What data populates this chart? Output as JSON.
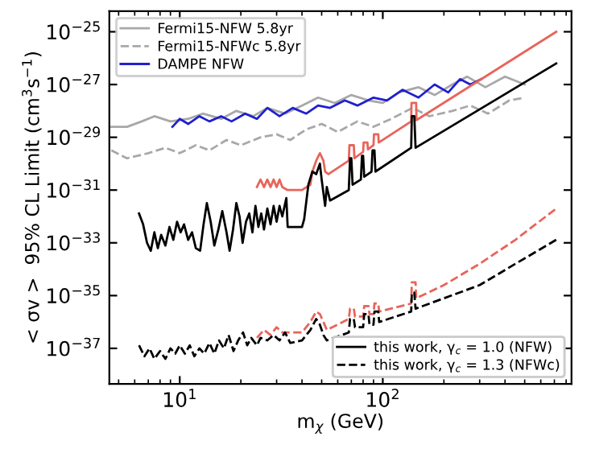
{
  "chart_data": {
    "type": "line",
    "xlabel": "m$_{χ}$ (GeV)",
    "ylabel": "< σv >  95% CL Limit (cm$^{3}$s$^{−1}$)",
    "log": "xy",
    "xlim": [
      4.5,
      850
    ],
    "ylim": [
      4.5e-39,
      6e-25
    ],
    "xticks": [
      {
        "value": 10,
        "label": "10$^{1}$"
      },
      {
        "value": 100,
        "label": "10$^{2}$"
      }
    ],
    "yticks": [
      {
        "value": 1e-37,
        "label": "10$^{−37}$"
      },
      {
        "value": 1e-35,
        "label": "10$^{−35}$"
      },
      {
        "value": 1e-33,
        "label": "10$^{−33}$"
      },
      {
        "value": 1e-31,
        "label": "10$^{−31}$"
      },
      {
        "value": 1e-29,
        "label": "10$^{−29}$"
      },
      {
        "value": 1e-27,
        "label": "10$^{−27}$"
      },
      {
        "value": 1e-25,
        "label": "10$^{−25}$"
      }
    ],
    "grid": false,
    "legend": [
      "top left",
      "bottom right"
    ],
    "marker": "none",
    "series": [
      {
        "name": "Fermi15-NFW 5.8yr",
        "color": "#a8a8a8",
        "line_style": "solid",
        "x": [
          4.6,
          5.5,
          6.5,
          7.5,
          9,
          11,
          13,
          16,
          19,
          23,
          27,
          33,
          40,
          48,
          58,
          70,
          85,
          100,
          120,
          150,
          180,
          220,
          260,
          320,
          400,
          500
        ],
        "values": [
          2.5e-29,
          2.5e-29,
          4e-29,
          6.3e-29,
          4e-29,
          5e-29,
          7.9e-29,
          5e-29,
          1e-28,
          6.3e-29,
          1.3e-28,
          7.9e-29,
          1.6e-28,
          3.2e-28,
          2e-28,
          4e-28,
          2.5e-28,
          2e-28,
          5e-28,
          7.9e-28,
          4e-28,
          1e-27,
          2e-27,
          7.9e-28,
          2e-27,
          1e-27
        ]
      },
      {
        "name": "Fermi15-NFWc 5.8yr",
        "color": "#a8a8a8",
        "line_style": "dashed",
        "x": [
          4.6,
          5.5,
          7,
          8.5,
          10,
          12,
          14,
          17,
          20,
          25,
          30,
          35,
          42,
          50,
          60,
          75,
          90,
          110,
          140,
          170,
          220,
          270,
          330,
          420,
          500
        ],
        "values": [
          3.2e-30,
          1.6e-30,
          2.5e-30,
          4e-30,
          2.5e-30,
          5e-30,
          3.2e-30,
          7.9e-30,
          5e-30,
          1e-29,
          1.3e-29,
          7.9e-30,
          2e-29,
          3.2e-29,
          1.6e-29,
          4e-29,
          2.5e-29,
          5e-29,
          1.3e-28,
          6.3e-29,
          1e-28,
          1.6e-28,
          7.9e-29,
          2.5e-28,
          3.2e-28
        ]
      },
      {
        "name": "DAMPE NFW",
        "color": "#2020d0",
        "line_style": "solid",
        "x": [
          9.2,
          10,
          11,
          12.5,
          14,
          16,
          18,
          21,
          24,
          27,
          31,
          36,
          42,
          48,
          55,
          65,
          75,
          90,
          105,
          125,
          150,
          180,
          210,
          240,
          270,
          305
        ],
        "values": [
          2.5e-29,
          5e-29,
          3.2e-29,
          6.3e-29,
          4e-29,
          6.3e-29,
          4e-29,
          7.9e-29,
          5e-29,
          1.3e-28,
          6.3e-29,
          1.3e-28,
          7.9e-29,
          1.6e-28,
          1.3e-28,
          2.5e-28,
          1.6e-28,
          3.2e-28,
          2.5e-28,
          6.3e-28,
          3.2e-28,
          1e-27,
          5e-28,
          1.6e-27,
          1e-27,
          1.6e-27
        ]
      },
      {
        "color": "#e8645a",
        "line_style": "solid",
        "x": [
          24,
          25,
          26,
          27,
          28,
          29,
          30,
          31,
          32,
          34,
          40,
          44,
          45,
          47,
          49,
          51,
          52,
          54,
          68,
          68.5,
          72,
          72.5,
          80,
          80.5,
          84,
          84.5,
          90,
          90.5,
          95,
          95.5,
          138,
          138.5,
          146,
          146.5,
          715
        ],
        "values": [
          1.3e-31,
          2.5e-31,
          1.3e-31,
          2.5e-31,
          1.3e-31,
          2.5e-31,
          1.3e-31,
          2.5e-31,
          1.3e-31,
          1e-31,
          1e-31,
          1.6e-31,
          5e-31,
          1.3e-30,
          2.5e-30,
          1.3e-30,
          5e-31,
          4e-31,
          1.3e-30,
          5e-30,
          5e-30,
          1.6e-30,
          2.8e-30,
          6.3e-30,
          6.3e-30,
          3.5e-30,
          5e-30,
          1.3e-29,
          1.3e-29,
          6.3e-30,
          4e-29,
          2e-28,
          2e-28,
          4.5e-29,
          1e-25
        ]
      },
      {
        "name": "this work, γ$_{c}$ = 1.0 (NFW)",
        "color": "#000000",
        "line_style": "solid",
        "x": [
          6.3,
          6.6,
          6.9,
          7.2,
          7.5,
          7.8,
          8.1,
          8.5,
          8.9,
          9.3,
          9.7,
          10.1,
          10.5,
          11,
          11.5,
          12,
          12.6,
          13.1,
          13.6,
          14.2,
          14.8,
          15.5,
          16.2,
          17,
          17.6,
          18.3,
          19,
          19.7,
          20.4,
          21.2,
          22,
          22.8,
          23.6,
          24.4,
          25.2,
          26,
          27,
          28,
          29,
          30,
          31,
          32,
          33.5,
          34,
          40,
          41,
          43,
          45,
          47,
          49,
          50,
          52,
          53,
          55,
          68,
          69,
          70,
          71,
          78,
          79,
          80,
          81,
          88,
          89,
          91,
          92,
          138,
          139,
          143,
          145,
          715
        ],
        "values": [
          1.3e-32,
          5e-33,
          1e-33,
          5e-34,
          2.5e-33,
          6.3e-34,
          2e-33,
          7.9e-34,
          4e-33,
          1.3e-33,
          6.3e-33,
          2.5e-33,
          5e-33,
          1.3e-33,
          2.5e-33,
          6.3e-34,
          5e-34,
          5e-33,
          3.2e-32,
          6.3e-33,
          7.9e-34,
          3.2e-33,
          1.6e-32,
          2.5e-33,
          5e-34,
          3.2e-33,
          3.2e-32,
          1e-32,
          1e-33,
          6.3e-33,
          1.3e-32,
          2.5e-33,
          2.5e-32,
          4e-33,
          1.3e-32,
          3.2e-33,
          2e-32,
          5e-33,
          2.5e-32,
          6.3e-33,
          2.5e-32,
          1e-32,
          5e-32,
          4e-33,
          4e-33,
          7.9e-33,
          1.6e-31,
          5e-31,
          4e-31,
          1e-30,
          2.5e-31,
          2.5e-32,
          1.3e-31,
          4e-32,
          1e-31,
          1.6e-30,
          1.6e-30,
          1.6e-31,
          2.5e-31,
          2e-30,
          2e-30,
          3.2e-31,
          5e-31,
          3.2e-30,
          3.2e-30,
          5e-31,
          4e-30,
          6.3e-29,
          6.3e-29,
          4e-30,
          6.3e-27
        ]
      },
      {
        "color": "#e8645a",
        "line_style": "dashed",
        "x": [
          24,
          26,
          28,
          30,
          32,
          34,
          40,
          44,
          47,
          49,
          51,
          53,
          68,
          69,
          72,
          73,
          80,
          81,
          85,
          86,
          90,
          91,
          95,
          96,
          138,
          139,
          145,
          146,
          200,
          300,
          450,
          715
        ],
        "values": [
          2.5e-37,
          5e-37,
          3.2e-37,
          6.3e-37,
          4e-37,
          4e-37,
          4e-37,
          1e-36,
          2.5e-36,
          2e-36,
          1e-36,
          5e-37,
          1.3e-36,
          3.2e-36,
          3.2e-36,
          1.6e-36,
          1.6e-36,
          4e-36,
          4e-36,
          2e-36,
          2e-36,
          5e-36,
          5e-36,
          2.5e-36,
          5e-36,
          3.2e-35,
          3.2e-35,
          7.9e-36,
          2.5e-35,
          1.6e-34,
          1.3e-33,
          2e-32
        ]
      },
      {
        "name": "this work, γ$_{c}$ = 1.3 (NFWc)",
        "color": "#000000",
        "line_style": "dashed",
        "x": [
          6.3,
          6.7,
          7.1,
          7.5,
          8,
          8.5,
          9,
          9.5,
          10,
          10.6,
          11.2,
          11.8,
          12.5,
          13.2,
          14,
          14.8,
          15.6,
          16.5,
          17.4,
          18.4,
          19.4,
          20.5,
          21.5,
          22.5,
          24,
          25,
          27,
          29,
          31,
          33,
          35,
          40,
          44,
          47,
          49,
          51,
          53,
          68,
          69,
          72,
          73,
          80,
          81,
          85,
          86,
          90,
          91,
          95,
          96,
          138,
          139,
          143,
          145,
          200,
          300,
          450,
          715
        ],
        "values": [
          1.3e-37,
          5e-38,
          1e-37,
          4e-38,
          7.9e-38,
          4e-38,
          1e-37,
          6.3e-38,
          1.3e-37,
          6.3e-38,
          1.3e-37,
          5e-38,
          1e-37,
          6.3e-38,
          1.6e-37,
          6.3e-38,
          2e-37,
          1e-37,
          3.2e-37,
          7.9e-38,
          2e-37,
          4e-37,
          1.3e-37,
          2.5e-37,
          1.3e-37,
          2.5e-37,
          2e-37,
          3.2e-37,
          2e-37,
          4e-37,
          1.6e-37,
          2e-37,
          5e-37,
          1.3e-36,
          7.9e-37,
          3.2e-37,
          2e-37,
          4e-37,
          1.3e-36,
          1.3e-36,
          6.3e-37,
          6.3e-37,
          2e-36,
          2e-36,
          7.9e-37,
          7.9e-37,
          2.5e-36,
          2.5e-36,
          1e-36,
          2.5e-36,
          1.3e-35,
          1.3e-35,
          3.2e-36,
          7.9e-36,
          2.5e-35,
          1.6e-34,
          1.3e-33
        ]
      }
    ]
  }
}
